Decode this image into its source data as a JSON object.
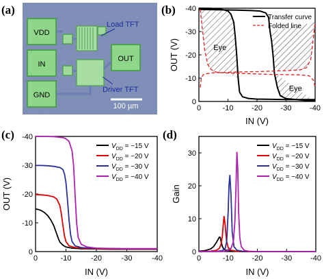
{
  "panel_labels": {
    "a": "(a)",
    "b": "(b)",
    "c": "(c)",
    "d": "(d)"
  },
  "micrograph": {
    "pads": {
      "vdd": "VDD",
      "in": "IN",
      "gnd": "GND",
      "out": "OUT"
    },
    "labels": {
      "load": "Load TFT",
      "driver": "Driver TFT"
    },
    "scale_bar": "100 µm",
    "colors": {
      "background": "#7f8fb8",
      "pad": "#8fd68a",
      "label": "#1a2c9e",
      "scale": "#ffffff"
    }
  },
  "chart_data": [
    {
      "panel": "b",
      "type": "line",
      "xlabel": "IN (V)",
      "ylabel": "OUT (V)",
      "xlim": [
        0,
        -40
      ],
      "ylim": [
        0,
        -40
      ],
      "xticks": [
        "0",
        "-10",
        "-20",
        "-30",
        "-40"
      ],
      "yticks": [
        "0",
        "-10",
        "-20",
        "-30",
        "-40"
      ],
      "legend": "top-right",
      "series": [
        {
          "name": "Transfer curve",
          "color": "#000000",
          "style": "solid",
          "x": [
            0,
            -4,
            -8,
            -10,
            -11,
            -12,
            -12.5,
            -13,
            -13.5,
            -14,
            -15,
            -17,
            -20,
            -25,
            -30,
            -35,
            -40
          ],
          "y": [
            -40,
            -39.9,
            -39.5,
            -38.8,
            -37.5,
            -34,
            -28,
            -20,
            -10,
            -4,
            -2,
            -1.3,
            -1,
            -0.9,
            -0.8,
            -0.8,
            -0.8
          ]
        },
        {
          "name": "Transfer curve",
          "color": "#000000",
          "style": "solid",
          "x": [
            -40,
            -36,
            -32,
            -30,
            -28,
            -27,
            -26,
            -25.5,
            -25,
            -24.5,
            -24,
            -23,
            -21,
            -18,
            -13,
            -8,
            0
          ],
          "y": [
            -0.2,
            -0.5,
            -1,
            -1.2,
            -2.5,
            -6,
            -12,
            -20,
            -26,
            -30,
            -36,
            -38,
            -38.8,
            -39,
            -39.2,
            -39.3,
            -39.5
          ]
        },
        {
          "name": "Folded line",
          "color": "#e02020",
          "style": "dashed",
          "x": [
            -0.5,
            -1,
            -2,
            -3,
            -4,
            -5,
            -6,
            -8,
            -10,
            -15,
            -20,
            -25,
            -30,
            -35,
            -38,
            -39.5,
            -40
          ],
          "y": [
            -39.5,
            -33,
            -22,
            -16,
            -14,
            -13,
            -12.6,
            -12.3,
            -12.2,
            -12,
            -11.8,
            -11.6,
            -11.5,
            -11.4,
            -11,
            -9,
            -6
          ]
        },
        {
          "name": "Folded line",
          "color": "#e02020",
          "style": "dashed",
          "x": [
            -0.5,
            -0.8,
            -1.5,
            -3,
            -5,
            -10,
            -15,
            -20,
            -25,
            -30,
            -35,
            -37,
            -38.5,
            -39.3,
            -40
          ],
          "y": [
            -6,
            -10,
            -11.5,
            -12,
            -12.3,
            -12.5,
            -12.7,
            -12.8,
            -13,
            -13.2,
            -13.6,
            -14.5,
            -18,
            -26,
            -34
          ]
        }
      ],
      "annotations": [
        "Eye",
        "Eye"
      ]
    },
    {
      "panel": "c",
      "type": "line",
      "xlabel": "IN (V)",
      "ylabel": "OUT (V)",
      "xlim": [
        0,
        -40
      ],
      "ylim": [
        0,
        -40
      ],
      "xticks": [
        "0",
        "-10",
        "-20",
        "-30",
        "-40"
      ],
      "yticks": [
        "0",
        "-10",
        "-20",
        "-30",
        "-40"
      ],
      "legend": "top-right",
      "series": [
        {
          "name": "VDD = −15 V",
          "legend_symbol": "V",
          "legend_sub": "DD",
          "legend_value": " = −15 V",
          "color": "#000000",
          "x": [
            0,
            -1,
            -2,
            -3,
            -4,
            -5,
            -6,
            -6.5,
            -7,
            -7.5,
            -8,
            -9,
            -10,
            -12,
            -15,
            -20,
            -25,
            -30,
            -35,
            -40
          ],
          "y": [
            -14.8,
            -14.6,
            -14.2,
            -13.5,
            -12.5,
            -11,
            -9,
            -7.5,
            -6,
            -4.5,
            -3.3,
            -2.2,
            -1.6,
            -1.2,
            -1,
            -0.9,
            -0.8,
            -0.8,
            -0.8,
            -0.8
          ]
        },
        {
          "name": "VDD = −20 V",
          "legend_symbol": "V",
          "legend_sub": "DD",
          "legend_value": " = −20 V",
          "color": "#e00000",
          "x": [
            0,
            -2,
            -4,
            -6,
            -7,
            -8,
            -8.5,
            -9,
            -9.5,
            -10,
            -11,
            -13,
            -16,
            -20,
            -25,
            -30,
            -35,
            -40
          ],
          "y": [
            -19.8,
            -19.7,
            -19.5,
            -19,
            -18.2,
            -16,
            -13,
            -9,
            -5.5,
            -3.5,
            -2,
            -1.4,
            -1.1,
            -1,
            -0.9,
            -0.9,
            -0.9,
            -0.9
          ]
        },
        {
          "name": "VDD = −30 V",
          "legend_symbol": "V",
          "legend_sub": "DD",
          "legend_value": " = −30 V",
          "color": "#2b2f9a",
          "x": [
            0,
            -2,
            -4,
            -6,
            -8,
            -9,
            -9.5,
            -10,
            -10.5,
            -11,
            -11.5,
            -12,
            -13,
            -15,
            -18,
            -22,
            -27,
            -32,
            -40
          ],
          "y": [
            -29.9,
            -29.9,
            -29.8,
            -29.6,
            -29.2,
            -28.5,
            -27,
            -24,
            -18,
            -11,
            -6,
            -3.5,
            -2,
            -1.4,
            -1.2,
            -1.1,
            -1,
            -1,
            -1
          ]
        },
        {
          "name": "VDD = −40 V",
          "legend_symbol": "V",
          "legend_sub": "DD",
          "legend_value": " = −40 V",
          "color": "#b01fb0",
          "x": [
            0,
            -3,
            -6,
            -9,
            -10,
            -11,
            -12,
            -12.5,
            -13,
            -13.5,
            -14,
            -15,
            -17,
            -20,
            -25,
            -30,
            -35,
            -40
          ],
          "y": [
            -40,
            -40,
            -39.9,
            -39.6,
            -39.2,
            -38.3,
            -35,
            -30,
            -20,
            -10,
            -5,
            -2.5,
            -1.6,
            -1.2,
            -1.1,
            -1,
            -1,
            -1
          ]
        }
      ]
    },
    {
      "panel": "d",
      "type": "line",
      "xlabel": "IN (V)",
      "ylabel": "Gain",
      "xlim": [
        0,
        -40
      ],
      "ylim": [
        0,
        35
      ],
      "xticks": [
        "0",
        "-10",
        "-20",
        "-30",
        "-40"
      ],
      "yticks": [
        "0",
        "10",
        "20",
        "30"
      ],
      "legend": "top-right",
      "series": [
        {
          "name": "VDD = −15 V",
          "legend_symbol": "V",
          "legend_sub": "DD",
          "legend_value": " = −15 V",
          "color": "#000000",
          "x": [
            0,
            -2,
            -4,
            -5,
            -6,
            -6.5,
            -7,
            -7.3,
            -7.6,
            -8,
            -8.5,
            -9,
            -10,
            -12,
            -15,
            -20,
            -25,
            -30,
            -35,
            -40
          ],
          "y": [
            0.1,
            0.3,
            0.8,
            1.5,
            2.8,
            3.6,
            4.4,
            4.3,
            3,
            1.6,
            0.8,
            0.5,
            0.3,
            0.1,
            0,
            0,
            0,
            0,
            0,
            0
          ]
        },
        {
          "name": "VDD = −20 V",
          "legend_symbol": "V",
          "legend_sub": "DD",
          "legend_value": " = −20 V",
          "color": "#e00000",
          "x": [
            0,
            -4,
            -6,
            -7,
            -7.5,
            -8,
            -8.3,
            -8.6,
            -9,
            -9.4,
            -10,
            -11,
            -13,
            -16,
            -20,
            -25,
            -30,
            -35,
            -40
          ],
          "y": [
            0,
            0.1,
            0.4,
            1,
            2,
            4.5,
            8,
            10.8,
            8,
            3.5,
            1.2,
            0.4,
            0.1,
            0,
            0,
            0,
            0,
            0,
            0
          ]
        },
        {
          "name": "VDD = −30 V",
          "legend_symbol": "V",
          "legend_sub": "DD",
          "legend_value": " = −30 V",
          "color": "#2b2f9a",
          "x": [
            0,
            -6,
            -8,
            -9,
            -9.5,
            -10,
            -10.3,
            -10.6,
            -11,
            -11.4,
            -12,
            -13,
            -15,
            -20,
            -25,
            -30,
            -35,
            -40
          ],
          "y": [
            0,
            0.05,
            0.3,
            1,
            3,
            12,
            20,
            23.3,
            17,
            6,
            1.5,
            0.4,
            0.1,
            0,
            0,
            0,
            0,
            0
          ]
        },
        {
          "name": "VDD = −40 V",
          "legend_symbol": "V",
          "legend_sub": "DD",
          "legend_value": " = −40 V",
          "color": "#b01fb0",
          "x": [
            0,
            -8,
            -10,
            -11,
            -11.8,
            -12.3,
            -12.7,
            -13,
            -13.3,
            -13.6,
            -14,
            -14.5,
            -15.5,
            -17,
            -20,
            -25,
            -30,
            -35,
            -40
          ],
          "y": [
            0,
            0.05,
            0.3,
            1,
            3,
            9,
            20,
            30.3,
            25,
            12,
            4,
            1.5,
            0.4,
            0.1,
            0,
            0,
            0,
            0,
            0
          ]
        }
      ]
    }
  ]
}
